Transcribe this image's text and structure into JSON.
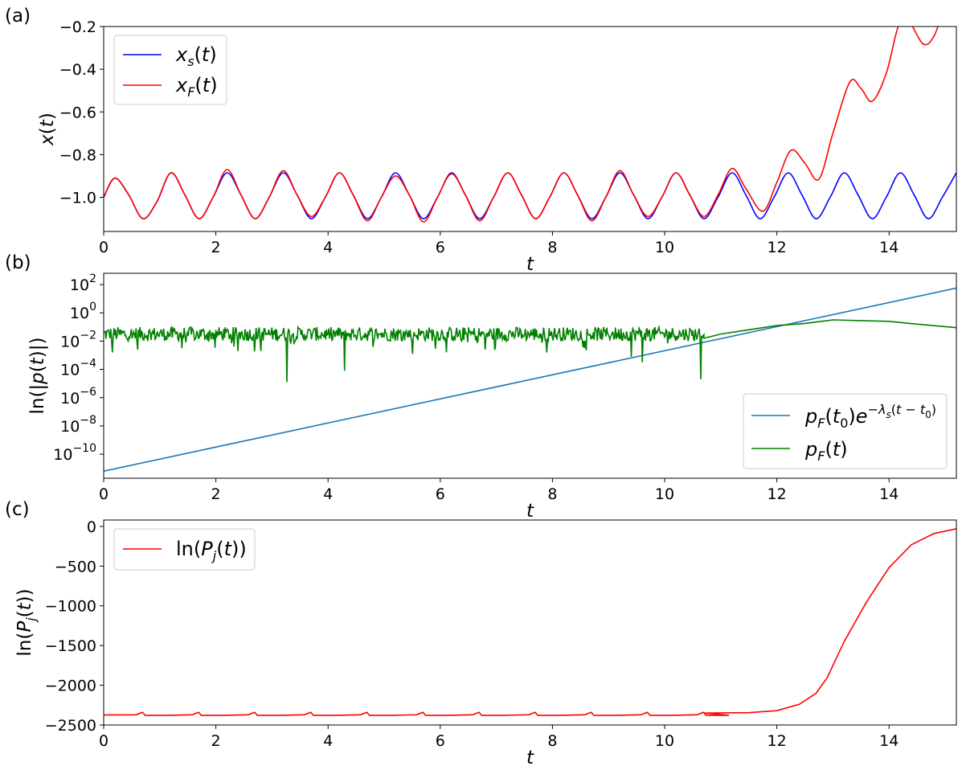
{
  "chart_data": [
    {
      "panel": "(a)",
      "type": "line",
      "xlabel": "t",
      "ylabel": "x(t)",
      "xlim": [
        0,
        15.2
      ],
      "ylim": [
        -1.16,
        -0.2
      ],
      "x_ticks": [
        0,
        2,
        4,
        6,
        8,
        10,
        12,
        14
      ],
      "y_ticks": [
        -1.0,
        -0.8,
        -0.6,
        -0.4,
        -0.2
      ],
      "y_tick_labels": [
        "−1.0",
        "−0.8",
        "−0.6",
        "−0.4",
        "−0.2"
      ],
      "legend_position": "top-left",
      "grid": false,
      "series": [
        {
          "name": "x_s(t)",
          "color": "#0000ff",
          "points": [
            [
              0,
              -1.0
            ],
            [
              0.2,
              -0.91
            ],
            [
              0.45,
              -0.99
            ],
            [
              0.7,
              -1.1
            ],
            [
              0.95,
              -1.02
            ],
            [
              1.2,
              -0.885
            ],
            [
              1.45,
              -0.99
            ],
            [
              1.7,
              -1.1
            ],
            [
              1.95,
              -1.0
            ],
            [
              2.2,
              -0.885
            ],
            [
              2.45,
              -0.99
            ],
            [
              2.7,
              -1.1
            ],
            [
              2.95,
              -1.0
            ],
            [
              3.2,
              -0.885
            ],
            [
              3.45,
              -0.99
            ],
            [
              3.7,
              -1.1
            ],
            [
              3.95,
              -1.0
            ],
            [
              4.2,
              -0.885
            ],
            [
              4.45,
              -0.99
            ],
            [
              4.7,
              -1.1
            ],
            [
              4.95,
              -1.0
            ],
            [
              5.2,
              -0.885
            ],
            [
              5.45,
              -0.99
            ],
            [
              5.7,
              -1.1
            ],
            [
              5.95,
              -1.0
            ],
            [
              6.2,
              -0.885
            ],
            [
              6.45,
              -0.99
            ],
            [
              6.7,
              -1.1
            ],
            [
              6.95,
              -1.0
            ],
            [
              7.2,
              -0.885
            ],
            [
              7.45,
              -0.99
            ],
            [
              7.7,
              -1.1
            ],
            [
              7.95,
              -1.0
            ],
            [
              8.2,
              -0.885
            ],
            [
              8.45,
              -0.99
            ],
            [
              8.7,
              -1.1
            ],
            [
              8.95,
              -1.0
            ],
            [
              9.2,
              -0.885
            ],
            [
              9.45,
              -0.99
            ],
            [
              9.7,
              -1.1
            ],
            [
              9.95,
              -1.0
            ],
            [
              10.2,
              -0.885
            ],
            [
              10.45,
              -0.99
            ],
            [
              10.7,
              -1.1
            ],
            [
              10.95,
              -1.0
            ],
            [
              11.2,
              -0.885
            ],
            [
              11.45,
              -0.99
            ],
            [
              11.7,
              -1.1
            ],
            [
              11.95,
              -1.0
            ],
            [
              12.2,
              -0.885
            ],
            [
              12.45,
              -0.99
            ],
            [
              12.7,
              -1.1
            ],
            [
              12.95,
              -1.0
            ],
            [
              13.2,
              -0.885
            ],
            [
              13.45,
              -0.99
            ],
            [
              13.7,
              -1.1
            ],
            [
              13.95,
              -1.0
            ],
            [
              14.2,
              -0.885
            ],
            [
              14.45,
              -0.99
            ],
            [
              14.7,
              -1.1
            ],
            [
              14.95,
              -1.0
            ],
            [
              15.2,
              -0.885
            ]
          ]
        },
        {
          "name": "x_F(t)",
          "color": "#ff0000",
          "points": [
            [
              0,
              -1.0
            ],
            [
              0.2,
              -0.91
            ],
            [
              0.45,
              -0.99
            ],
            [
              0.7,
              -1.1
            ],
            [
              0.95,
              -1.02
            ],
            [
              1.2,
              -0.885
            ],
            [
              1.45,
              -0.99
            ],
            [
              1.7,
              -1.1
            ],
            [
              1.95,
              -1.0
            ],
            [
              2.2,
              -0.87
            ],
            [
              2.45,
              -0.99
            ],
            [
              2.7,
              -1.1
            ],
            [
              2.95,
              -1.0
            ],
            [
              3.2,
              -0.875
            ],
            [
              3.45,
              -0.99
            ],
            [
              3.7,
              -1.09
            ],
            [
              3.95,
              -1.0
            ],
            [
              4.2,
              -0.885
            ],
            [
              4.45,
              -0.99
            ],
            [
              4.7,
              -1.11
            ],
            [
              4.95,
              -1.0
            ],
            [
              5.2,
              -0.9
            ],
            [
              5.45,
              -0.99
            ],
            [
              5.7,
              -1.115
            ],
            [
              5.95,
              -1.0
            ],
            [
              6.2,
              -0.89
            ],
            [
              6.45,
              -0.99
            ],
            [
              6.7,
              -1.11
            ],
            [
              6.95,
              -1.0
            ],
            [
              7.2,
              -0.885
            ],
            [
              7.45,
              -0.99
            ],
            [
              7.7,
              -1.1
            ],
            [
              7.95,
              -1.0
            ],
            [
              8.2,
              -0.885
            ],
            [
              8.45,
              -0.99
            ],
            [
              8.7,
              -1.11
            ],
            [
              8.95,
              -1.0
            ],
            [
              9.2,
              -0.875
            ],
            [
              9.45,
              -0.99
            ],
            [
              9.7,
              -1.09
            ],
            [
              9.95,
              -1.0
            ],
            [
              10.2,
              -0.885
            ],
            [
              10.45,
              -0.99
            ],
            [
              10.7,
              -1.09
            ],
            [
              10.95,
              -0.99
            ],
            [
              11.2,
              -0.865
            ],
            [
              11.45,
              -0.96
            ],
            [
              11.75,
              -1.065
            ],
            [
              12.0,
              -0.93
            ],
            [
              12.25,
              -0.78
            ],
            [
              12.5,
              -0.84
            ],
            [
              12.75,
              -0.915
            ],
            [
              13.0,
              -0.7
            ],
            [
              13.3,
              -0.46
            ],
            [
              13.5,
              -0.49
            ],
            [
              13.7,
              -0.55
            ],
            [
              13.95,
              -0.42
            ],
            [
              14.15,
              -0.21
            ],
            [
              14.3,
              -0.15
            ],
            [
              14.6,
              -0.28
            ],
            [
              14.8,
              -0.245
            ],
            [
              15.0,
              -0.1
            ]
          ]
        }
      ]
    },
    {
      "panel": "(b)",
      "type": "line",
      "xlabel": "t",
      "ylabel": "ln(|p(t)|)",
      "y_scale": "log",
      "xlim": [
        0,
        15.2
      ],
      "ylim_exponent": [
        -11.7,
        2.8
      ],
      "x_ticks": [
        0,
        2,
        4,
        6,
        8,
        10,
        12,
        14
      ],
      "y_tick_exponents": [
        -10,
        -8,
        -6,
        -4,
        -2,
        0,
        2
      ],
      "legend_position": "lower-right",
      "grid": false,
      "series": [
        {
          "name": "p_F(t_0)e^{-λ_s(t-t_0)}",
          "color": "#1f77b4",
          "log10_points": [
            [
              0,
              -11.2
            ],
            [
              15.2,
              1.75
            ]
          ]
        },
        {
          "name": "p_F(t)",
          "color": "#008000",
          "noise_region": {
            "t_start": 0,
            "t_end": 10.7,
            "log10_typical": -1.5,
            "log10_spread": 0.5
          },
          "noise_dips": [
            [
              0.15,
              -2.8
            ],
            [
              0.6,
              -2.6
            ],
            [
              1.4,
              -2.5
            ],
            [
              2.8,
              -2.7
            ],
            [
              3.27,
              -4.9
            ],
            [
              4.3,
              -4.1
            ],
            [
              5.5,
              -2.9
            ],
            [
              6.8,
              -2.6
            ],
            [
              7.9,
              -2.8
            ],
            [
              9.4,
              -3.1
            ],
            [
              9.6,
              -3.5
            ],
            [
              10.65,
              -4.7
            ]
          ],
          "smooth_log10_points": [
            [
              10.7,
              -1.8
            ],
            [
              11.0,
              -1.5
            ],
            [
              11.5,
              -1.2
            ],
            [
              12.0,
              -0.9
            ],
            [
              12.5,
              -0.75
            ],
            [
              13.0,
              -0.5
            ],
            [
              13.5,
              -0.55
            ],
            [
              14.0,
              -0.6
            ],
            [
              14.5,
              -0.8
            ],
            [
              15.2,
              -1.05
            ]
          ]
        }
      ]
    },
    {
      "panel": "(c)",
      "type": "line",
      "xlabel": "t",
      "ylabel": "ln(P_j(t))",
      "xlim": [
        0,
        15.2
      ],
      "ylim": [
        -2500,
        80
      ],
      "x_ticks": [
        0,
        2,
        4,
        6,
        8,
        10,
        12,
        14
      ],
      "y_ticks": [
        -2500,
        -2000,
        -1500,
        -1000,
        -500,
        0
      ],
      "y_tick_labels": [
        "−2500",
        "−2000",
        "−1500",
        "−1000",
        "−500",
        "0"
      ],
      "legend_position": "top-left",
      "grid": false,
      "series": [
        {
          "name": "ln(P_j(t))",
          "color": "#ff0000",
          "baseline": -2380,
          "sawtooth_t": [
            0.7,
            1.7,
            2.7,
            3.7,
            4.7,
            5.7,
            6.7,
            7.7,
            8.7,
            9.7,
            10.7
          ],
          "sawtooth_height": 35,
          "tail_points": [
            [
              10.7,
              -2350
            ],
            [
              11.5,
              -2345
            ],
            [
              12.0,
              -2320
            ],
            [
              12.4,
              -2240
            ],
            [
              12.7,
              -2100
            ],
            [
              12.9,
              -1900
            ],
            [
              13.2,
              -1450
            ],
            [
              13.6,
              -950
            ],
            [
              14.0,
              -520
            ],
            [
              14.4,
              -230
            ],
            [
              14.8,
              -90
            ],
            [
              15.2,
              -30
            ]
          ]
        }
      ]
    }
  ],
  "panel_labels": [
    "(a)",
    "(b)",
    "(c)"
  ]
}
